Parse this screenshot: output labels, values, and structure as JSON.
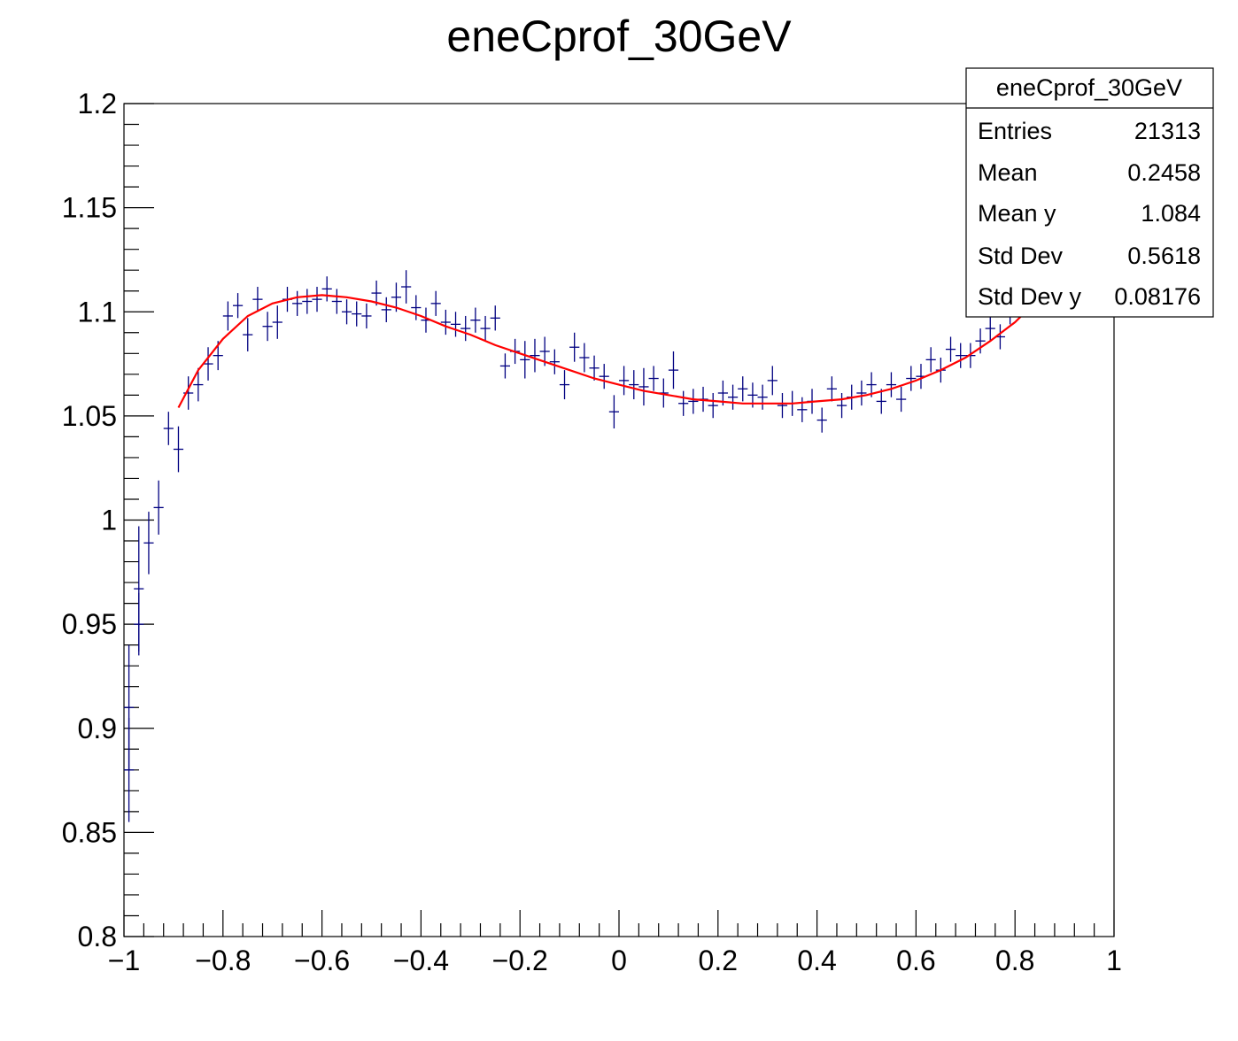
{
  "chart_data": {
    "type": "scatter",
    "title": "eneCprof_30GeV",
    "xlabel": "",
    "ylabel": "",
    "xlim": [
      -1,
      1
    ],
    "ylim": [
      0.8,
      1.2
    ],
    "x_ticks": [
      -1,
      -0.8,
      -0.6,
      -0.4,
      -0.2,
      0,
      0.2,
      0.4,
      0.6,
      0.8,
      1
    ],
    "x_tick_labels": [
      "−1",
      "−0.8",
      "−0.6",
      "−0.4",
      "−0.2",
      "0",
      "0.2",
      "0.4",
      "0.6",
      "0.8",
      "1"
    ],
    "y_ticks": [
      0.8,
      0.85,
      0.9,
      0.95,
      1,
      1.05,
      1.1,
      1.15,
      1.2
    ],
    "y_tick_labels": [
      "0.8",
      "0.85",
      "0.9",
      "0.95",
      "1",
      "1.05",
      "1.1",
      "1.15",
      "1.2"
    ],
    "grid": false,
    "colors": {
      "points": "#000080",
      "fit": "#ff0000"
    },
    "series": [
      {
        "type": "profile",
        "bin_width": 0.02,
        "x": [
          -0.99,
          -0.97,
          -0.95,
          -0.93,
          -0.91,
          -0.89,
          -0.87,
          -0.85,
          -0.83,
          -0.81,
          -0.79,
          -0.77,
          -0.75,
          -0.73,
          -0.71,
          -0.69,
          -0.67,
          -0.65,
          -0.63,
          -0.61,
          -0.59,
          -0.57,
          -0.55,
          -0.53,
          -0.51,
          -0.49,
          -0.47,
          -0.45,
          -0.43,
          -0.41,
          -0.39,
          -0.37,
          -0.35,
          -0.33,
          -0.31,
          -0.29,
          -0.27,
          -0.25,
          -0.23,
          -0.21,
          -0.19,
          -0.17,
          -0.15,
          -0.13,
          -0.11,
          -0.09,
          -0.07,
          -0.05,
          -0.03,
          -0.01,
          0.01,
          0.03,
          0.05,
          0.07,
          0.09,
          0.11,
          0.13,
          0.15,
          0.17,
          0.19,
          0.21,
          0.23,
          0.25,
          0.27,
          0.29,
          0.31,
          0.33,
          0.35,
          0.37,
          0.39,
          0.41,
          0.43,
          0.45,
          0.47,
          0.49,
          0.51,
          0.53,
          0.55,
          0.57,
          0.59,
          0.61,
          0.63,
          0.65,
          0.67,
          0.69,
          0.71,
          0.73,
          0.75,
          0.77,
          0.79
        ],
        "y": [
          0.91,
          0.967,
          0.989,
          1.006,
          1.044,
          1.034,
          1.061,
          1.065,
          1.075,
          1.079,
          1.098,
          1.103,
          1.089,
          1.106,
          1.093,
          1.095,
          1.106,
          1.104,
          1.105,
          1.106,
          1.111,
          1.105,
          1.1,
          1.099,
          1.098,
          1.109,
          1.101,
          1.107,
          1.112,
          1.102,
          1.096,
          1.104,
          1.095,
          1.094,
          1.092,
          1.096,
          1.092,
          1.097,
          1.074,
          1.081,
          1.077,
          1.079,
          1.081,
          1.076,
          1.065,
          1.083,
          1.078,
          1.073,
          1.069,
          1.052,
          1.067,
          1.065,
          1.064,
          1.068,
          1.061,
          1.072,
          1.056,
          1.057,
          1.058,
          1.055,
          1.061,
          1.059,
          1.063,
          1.06,
          1.059,
          1.067,
          1.055,
          1.056,
          1.053,
          1.057,
          1.048,
          1.063,
          1.055,
          1.059,
          1.061,
          1.065,
          1.057,
          1.065,
          1.058,
          1.068,
          1.069,
          1.077,
          1.072,
          1.082,
          1.079,
          1.079,
          1.086,
          1.092,
          1.088,
          1.1
        ],
        "yerr": [
          0.03,
          0.03,
          0.015,
          0.013,
          0.008,
          0.011,
          0.008,
          0.008,
          0.008,
          0.007,
          0.007,
          0.006,
          0.008,
          0.006,
          0.007,
          0.008,
          0.006,
          0.006,
          0.006,
          0.006,
          0.006,
          0.006,
          0.006,
          0.006,
          0.006,
          0.006,
          0.006,
          0.007,
          0.008,
          0.006,
          0.006,
          0.006,
          0.006,
          0.006,
          0.006,
          0.006,
          0.006,
          0.006,
          0.006,
          0.006,
          0.009,
          0.008,
          0.007,
          0.006,
          0.007,
          0.007,
          0.007,
          0.006,
          0.006,
          0.008,
          0.007,
          0.007,
          0.009,
          0.006,
          0.007,
          0.009,
          0.006,
          0.006,
          0.006,
          0.006,
          0.006,
          0.006,
          0.006,
          0.006,
          0.006,
          0.007,
          0.006,
          0.006,
          0.006,
          0.006,
          0.006,
          0.006,
          0.006,
          0.006,
          0.006,
          0.006,
          0.006,
          0.006,
          0.006,
          0.006,
          0.006,
          0.006,
          0.006,
          0.006,
          0.006,
          0.006,
          0.006,
          0.006,
          0.006,
          0.006
        ],
        "extra_points": [
          {
            "x": -0.99,
            "y": 0.88,
            "yerr": 0.025
          },
          {
            "x": -0.97,
            "y": 0.95,
            "yerr": 0.015
          }
        ]
      },
      {
        "type": "fit",
        "x": [
          -0.89,
          -0.85,
          -0.8,
          -0.75,
          -0.7,
          -0.65,
          -0.6,
          -0.55,
          -0.5,
          -0.45,
          -0.4,
          -0.35,
          -0.3,
          -0.25,
          -0.2,
          -0.15,
          -0.1,
          -0.05,
          0,
          0.05,
          0.1,
          0.15,
          0.2,
          0.25,
          0.3,
          0.35,
          0.4,
          0.45,
          0.5,
          0.55,
          0.6,
          0.65,
          0.7,
          0.75,
          0.8,
          0.83
        ],
        "y": [
          1.054,
          1.072,
          1.087,
          1.098,
          1.104,
          1.107,
          1.108,
          1.107,
          1.105,
          1.102,
          1.098,
          1.093,
          1.089,
          1.084,
          1.08,
          1.076,
          1.072,
          1.068,
          1.065,
          1.062,
          1.06,
          1.058,
          1.057,
          1.056,
          1.056,
          1.056,
          1.057,
          1.058,
          1.06,
          1.063,
          1.067,
          1.072,
          1.078,
          1.086,
          1.095,
          1.102
        ]
      }
    ]
  },
  "stats": {
    "title": "eneCprof_30GeV",
    "rows": [
      {
        "label": "Entries",
        "value": "21313"
      },
      {
        "label": "Mean",
        "value": "0.2458"
      },
      {
        "label": "Mean y",
        "value": "1.084"
      },
      {
        "label": "Std Dev",
        "value": "0.5618"
      },
      {
        "label": "Std Dev y",
        "value": "0.08176"
      }
    ]
  }
}
